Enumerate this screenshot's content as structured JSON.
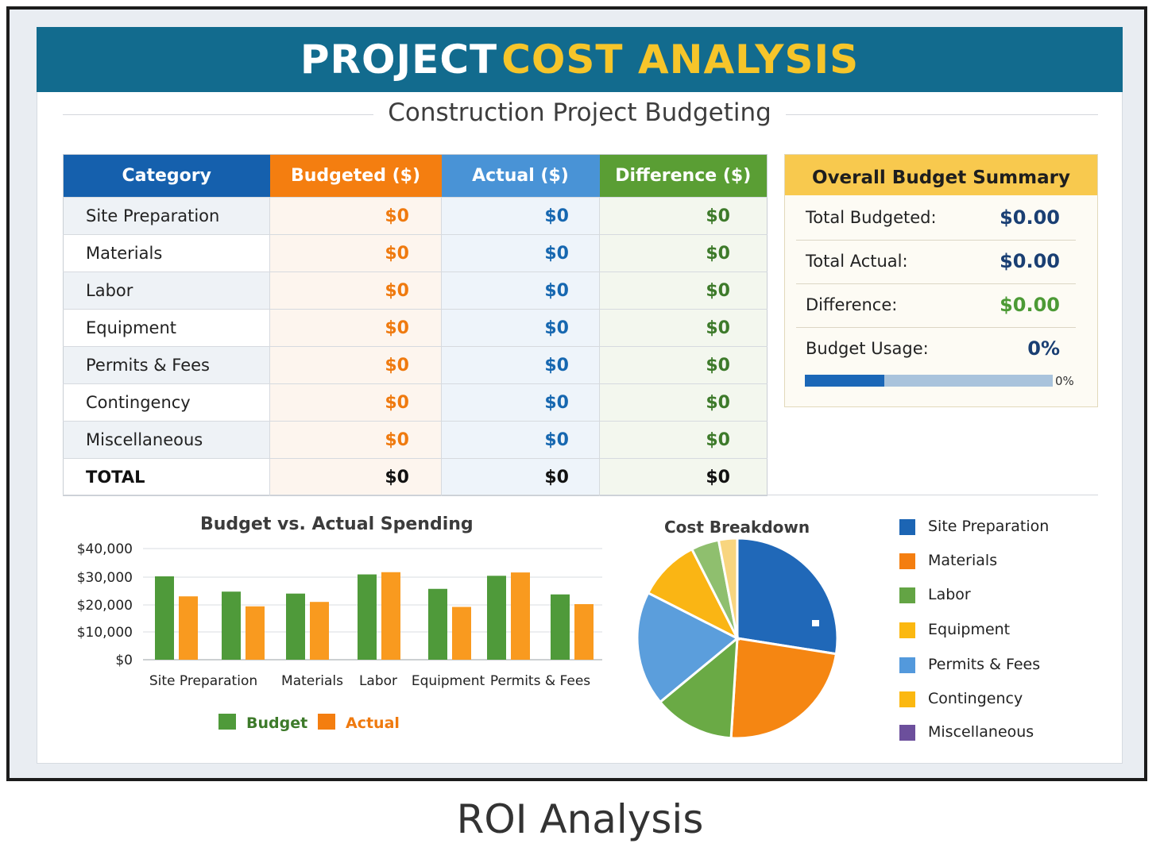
{
  "header": {
    "title_part1": "PROJECT",
    "title_part2": "COST ANALYSIS",
    "subtitle": "Construction Project Budgeting"
  },
  "table": {
    "headers": [
      "Category",
      "Budgeted ($)",
      "Actual ($)",
      "Difference ($)"
    ],
    "header_colors": [
      "#1560ad",
      "#f47e10",
      "#4993d6",
      "#5a9e34"
    ],
    "rows": [
      {
        "category": "Site Preparation",
        "budgeted": "$0",
        "actual": "$0",
        "difference": "$0"
      },
      {
        "category": "Materials",
        "budgeted": "$0",
        "actual": "$0",
        "difference": "$0"
      },
      {
        "category": "Labor",
        "budgeted": "$0",
        "actual": "$0",
        "difference": "$0"
      },
      {
        "category": "Equipment",
        "budgeted": "$0",
        "actual": "$0",
        "difference": "$0"
      },
      {
        "category": "Permits & Fees",
        "budgeted": "$0",
        "actual": "$0",
        "difference": "$0"
      },
      {
        "category": "Contingency",
        "budgeted": "$0",
        "actual": "$0",
        "difference": "$0"
      },
      {
        "category": "Miscellaneous",
        "budgeted": "$0",
        "actual": "$0",
        "difference": "$0"
      }
    ],
    "total": {
      "category": "TOTAL",
      "budgeted": "$0",
      "actual": "$0",
      "difference": "$0"
    }
  },
  "summary": {
    "title": "Overall Budget Summary",
    "total_budgeted_label": "Total Budgeted:",
    "total_budgeted_value": "$0.00",
    "total_actual_label": "Total Actual:",
    "total_actual_value": "$0.00",
    "difference_label": "Difference:",
    "difference_value": "$0.00",
    "usage_label": "Budget Usage:",
    "usage_value": "0%",
    "usage_bar_label": "0%",
    "usage_bar_fill_fraction": 0.32
  },
  "chart_data": [
    {
      "type": "bar",
      "title": "Budget vs. Actual Spending",
      "categories": [
        "Site Preparation",
        "",
        "Materials",
        "Labor",
        "Equipment",
        "Permits & Fees",
        ""
      ],
      "series": [
        {
          "name": "Budget",
          "color": "#4f9a3a",
          "values": [
            30000,
            24500,
            23800,
            30700,
            25500,
            30200,
            23500
          ]
        },
        {
          "name": "Actual",
          "color": "#f99a1f",
          "values": [
            22800,
            19200,
            20800,
            31500,
            19000,
            31400,
            20000
          ]
        }
      ],
      "y_ticks": [
        "$40,000",
        "$30,000",
        "$20,000",
        "$10,000",
        "$0"
      ],
      "ylim": [
        0,
        40000
      ],
      "grid": true,
      "legend_position": "bottom"
    },
    {
      "type": "pie",
      "title": "Cost Breakdown",
      "slices": [
        {
          "label": "Site Preparation",
          "value": 27.5,
          "color": "#2068b8"
        },
        {
          "label": "Materials",
          "value": 23.5,
          "color": "#f58612"
        },
        {
          "label": "Labor",
          "value": 13.0,
          "color": "#6aaa45"
        },
        {
          "label": "Permits & Fees",
          "value": 18.5,
          "color": "#5b9edc"
        },
        {
          "label": "Equipment",
          "value": 10.0,
          "color": "#fab514"
        },
        {
          "label": "Contingency",
          "value": 4.5,
          "color": "#8fbf6e"
        },
        {
          "label": "Miscellaneous",
          "value": 3.0,
          "color": "#f8d57f"
        }
      ],
      "legend": [
        {
          "label": "Site Preparation",
          "color": "#1c65b4"
        },
        {
          "label": "Materials",
          "color": "#f47e10"
        },
        {
          "label": "Labor",
          "color": "#63a444"
        },
        {
          "label": "Equipment",
          "color": "#fbb810"
        },
        {
          "label": "Permits & Fees",
          "color": "#5399dc"
        },
        {
          "label": "Contingency",
          "color": "#fbb810"
        },
        {
          "label": "Miscellaneous",
          "color": "#6c4f9c"
        }
      ],
      "legend_position": "right"
    }
  ],
  "caption": "ROI Analysis"
}
